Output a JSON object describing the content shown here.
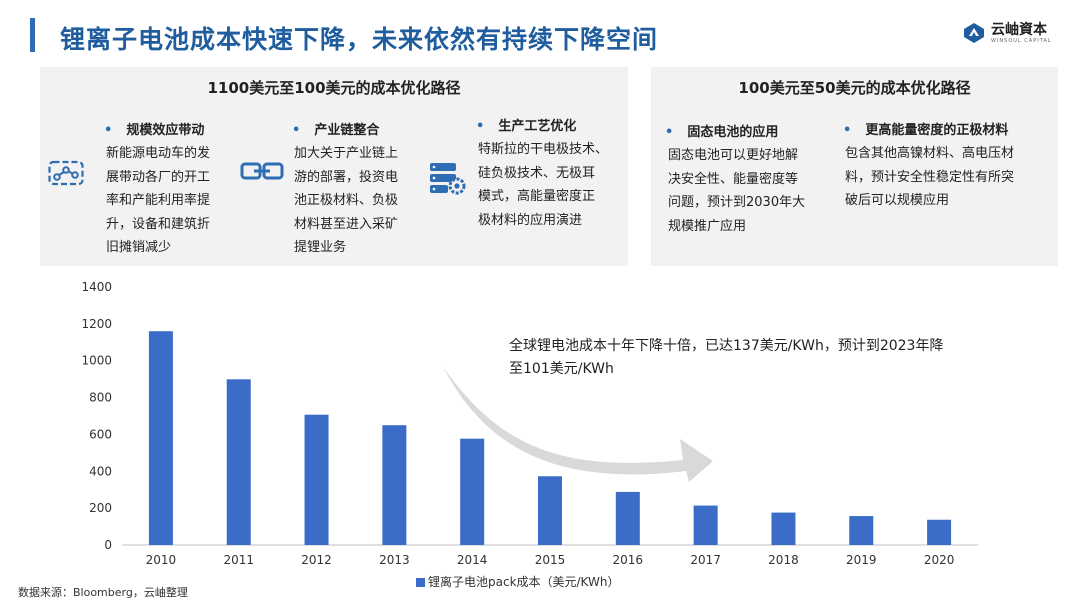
{
  "header": {
    "title": "锂离子电池成本快速下降，未来依然有持续下降空间",
    "logo_cn": "云岫資本",
    "logo_en": "WINSOUL CAPITAL"
  },
  "panel_left": {
    "heading": "1100美元至100美元的成本优化路径",
    "items": [
      {
        "title": "规模效应带动",
        "icon": "connected-nodes-icon",
        "lines": [
          "新能源电动车的发",
          "展带动各厂的开工",
          "率和产能利用率提",
          "升，设备和建筑折",
          "旧摊销减少"
        ]
      },
      {
        "title": "产业链整合",
        "icon": "chain-link-icon",
        "lines": [
          "加大关于产业链上",
          "游的部署，投资电",
          "池正极材料、负极",
          "材料甚至进入采矿",
          "提锂业务"
        ]
      },
      {
        "title": "生产工艺优化",
        "icon": "server-gear-icon",
        "lines": [
          "特斯拉的干电极技术、",
          "硅负极技术、无极耳",
          "模式，高能量密度正",
          "极材料的应用演进"
        ]
      }
    ]
  },
  "panel_right": {
    "heading": "100美元至50美元的成本优化路径",
    "items": [
      {
        "title": "固态电池的应用",
        "lines": [
          "固态电池可以更好地解",
          "决安全性、能量密度等",
          "问题，预计到2030年大",
          "规模推广应用"
        ]
      },
      {
        "title": "更高能量密度的正极材料",
        "lines": [
          "包含其他高镍材料、高电压材",
          "料，预计安全性稳定性有所突",
          "破后可以规模应用"
        ]
      }
    ]
  },
  "chart_data": {
    "type": "bar",
    "categories": [
      "2010",
      "2011",
      "2012",
      "2013",
      "2014",
      "2015",
      "2016",
      "2017",
      "2018",
      "2019",
      "2020"
    ],
    "series": [
      {
        "name": "锂离子电池pack成本（美元/KWh）",
        "values": [
          1160,
          899,
          707,
          650,
          577,
          373,
          288,
          214,
          176,
          157,
          137
        ]
      }
    ],
    "ylim": [
      0,
      1400
    ],
    "yticks": [
      0,
      200,
      400,
      600,
      800,
      1000,
      1200,
      1400
    ],
    "bar_color": "#3a6cc8",
    "legend_position": "bottom",
    "grid": false,
    "annotation": [
      "全球锂电池成本十年下降十倍，已达137美元/KWh，预计到2023年降",
      "至101美元/KWh"
    ],
    "arrow": "decline-trend-arrow"
  },
  "footer": {
    "source": "数据来源：Bloomberg，云岫整理"
  },
  "colors": {
    "accent": "#2e6db4",
    "title": "#1f5d9f",
    "panel_bg": "#f2f2f2",
    "bar": "#3a6cc8",
    "arrow": "#d9d9d9"
  }
}
